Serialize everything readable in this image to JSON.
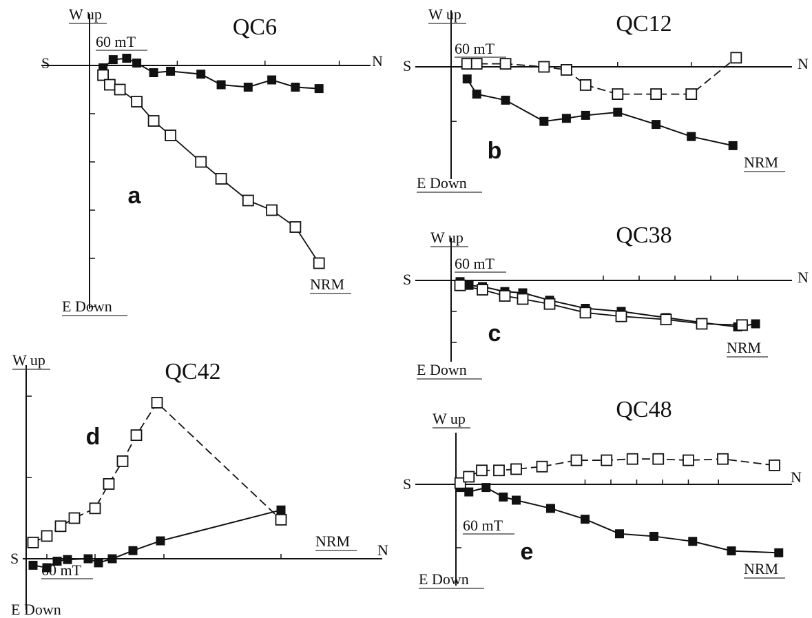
{
  "chart_data": [
    {
      "type": "scatter",
      "title": "QC6",
      "panel_label": "a",
      "axis_labels": {
        "west": "S",
        "east": "N",
        "north": "W up",
        "south": "E Down"
      },
      "field_label": "60 mT",
      "end_label": "NRM",
      "xlim": [
        -0.3,
        4.0
      ],
      "ylim": [
        -5.2,
        0.5
      ],
      "series": [
        {
          "style": "filled",
          "points": [
            [
              0.2,
              -0.05
            ],
            [
              0.35,
              0.12
            ],
            [
              0.55,
              0.15
            ],
            [
              0.7,
              0.05
            ],
            [
              0.95,
              -0.15
            ],
            [
              1.2,
              -0.12
            ],
            [
              1.65,
              -0.18
            ],
            [
              1.95,
              -0.4
            ],
            [
              2.35,
              -0.45
            ],
            [
              2.7,
              -0.3
            ],
            [
              3.05,
              -0.45
            ],
            [
              3.4,
              -0.48
            ]
          ]
        },
        {
          "style": "open",
          "points": [
            [
              0.2,
              -0.2
            ],
            [
              0.3,
              -0.4
            ],
            [
              0.45,
              -0.5
            ],
            [
              0.7,
              -0.75
            ],
            [
              0.95,
              -1.15
            ],
            [
              1.2,
              -1.45
            ],
            [
              1.65,
              -2.0
            ],
            [
              1.95,
              -2.35
            ],
            [
              2.35,
              -2.8
            ],
            [
              2.7,
              -3.0
            ],
            [
              3.05,
              -3.35
            ],
            [
              3.4,
              -4.1
            ]
          ]
        }
      ]
    },
    {
      "type": "scatter",
      "title": "QC12",
      "panel_label": "b",
      "axis_labels": {
        "west": "S",
        "east": "N",
        "north": "W up",
        "south": "E Down"
      },
      "field_label": "60 mT",
      "end_label": "NRM",
      "xlim": [
        -0.5,
        5.0
      ],
      "ylim": [
        -1.6,
        0.6
      ],
      "series": [
        {
          "style": "filled",
          "points": [
            [
              0.25,
              -0.2
            ],
            [
              0.4,
              -0.45
            ],
            [
              0.85,
              -0.55
            ],
            [
              1.45,
              -0.9
            ],
            [
              1.8,
              -0.85
            ],
            [
              2.1,
              -0.8
            ],
            [
              2.6,
              -0.75
            ],
            [
              3.2,
              -0.95
            ],
            [
              3.75,
              -1.15
            ],
            [
              4.4,
              -1.3
            ]
          ]
        },
        {
          "style": "open",
          "points": [
            [
              0.25,
              0.05
            ],
            [
              0.4,
              0.05
            ],
            [
              0.85,
              0.05
            ],
            [
              1.45,
              0.0
            ],
            [
              1.8,
              -0.05
            ],
            [
              2.1,
              -0.3
            ],
            [
              2.6,
              -0.45
            ],
            [
              3.2,
              -0.45
            ],
            [
              3.75,
              -0.45
            ],
            [
              4.45,
              0.15
            ]
          ]
        }
      ]
    },
    {
      "type": "scatter",
      "title": "QC38",
      "panel_label": "c",
      "axis_labels": {
        "west": "S",
        "east": "N",
        "north": "W up",
        "south": "E Down"
      },
      "field_label": "60 mT",
      "end_label": "NRM",
      "xlim": [
        -0.3,
        4.0
      ],
      "ylim": [
        -1.1,
        0.4
      ],
      "series": [
        {
          "style": "filled",
          "points": [
            [
              0.1,
              -0.02
            ],
            [
              0.2,
              -0.08
            ],
            [
              0.35,
              -0.1
            ],
            [
              0.6,
              -0.18
            ],
            [
              0.8,
              -0.2
            ],
            [
              1.1,
              -0.32
            ],
            [
              1.5,
              -0.45
            ],
            [
              1.9,
              -0.5
            ],
            [
              2.4,
              -0.6
            ],
            [
              2.8,
              -0.68
            ],
            [
              3.2,
              -0.75
            ],
            [
              3.4,
              -0.7
            ]
          ]
        },
        {
          "style": "open",
          "points": [
            [
              0.1,
              -0.08
            ],
            [
              0.35,
              -0.15
            ],
            [
              0.6,
              -0.25
            ],
            [
              0.8,
              -0.3
            ],
            [
              1.1,
              -0.38
            ],
            [
              1.5,
              -0.52
            ],
            [
              1.9,
              -0.58
            ],
            [
              2.4,
              -0.63
            ],
            [
              2.8,
              -0.7
            ],
            [
              3.25,
              -0.72
            ]
          ]
        }
      ]
    },
    {
      "type": "scatter",
      "title": "QC42",
      "panel_label": "d",
      "axis_labels": {
        "west": "S",
        "east": "N",
        "north": "W up",
        "south": "E Down"
      },
      "field_label": "60 mT",
      "end_label": "NRM",
      "xlim": [
        -0.3,
        5.6
      ],
      "ylim": [
        -0.3,
        2.2
      ],
      "series": [
        {
          "style": "filled",
          "points": [
            [
              0.1,
              -0.08
            ],
            [
              0.3,
              -0.11
            ],
            [
              0.45,
              -0.03
            ],
            [
              0.6,
              -0.01
            ],
            [
              0.9,
              0.0
            ],
            [
              1.05,
              -0.05
            ],
            [
              1.25,
              0.0
            ],
            [
              1.55,
              0.1
            ],
            [
              1.95,
              0.22
            ],
            [
              3.7,
              0.6
            ]
          ]
        },
        {
          "style": "open",
          "points": [
            [
              0.1,
              0.2
            ],
            [
              0.3,
              0.28
            ],
            [
              0.5,
              0.4
            ],
            [
              0.7,
              0.5
            ],
            [
              1.0,
              0.62
            ],
            [
              1.2,
              0.92
            ],
            [
              1.4,
              1.2
            ],
            [
              1.6,
              1.52
            ],
            [
              1.9,
              1.92
            ],
            [
              3.7,
              0.48
            ]
          ]
        }
      ]
    },
    {
      "type": "scatter",
      "title": "QC48",
      "panel_label": "e",
      "axis_labels": {
        "west": "S",
        "east": "N",
        "north": "W up",
        "south": "E Down"
      },
      "field_label": "60 mT",
      "end_label": "NRM",
      "xlim": [
        -0.3,
        4.0
      ],
      "ylim": [
        -1.6,
        0.6
      ],
      "series": [
        {
          "style": "filled",
          "points": [
            [
              0.05,
              -0.05
            ],
            [
              0.15,
              -0.12
            ],
            [
              0.35,
              -0.05
            ],
            [
              0.55,
              -0.2
            ],
            [
              0.7,
              -0.25
            ],
            [
              1.1,
              -0.38
            ],
            [
              1.5,
              -0.55
            ],
            [
              1.9,
              -0.78
            ],
            [
              2.3,
              -0.82
            ],
            [
              2.75,
              -0.9
            ],
            [
              3.2,
              -1.05
            ],
            [
              3.75,
              -1.08
            ]
          ]
        },
        {
          "style": "open",
          "points": [
            [
              0.05,
              0.02
            ],
            [
              0.15,
              0.12
            ],
            [
              0.3,
              0.22
            ],
            [
              0.5,
              0.22
            ],
            [
              0.7,
              0.24
            ],
            [
              1.0,
              0.28
            ],
            [
              1.4,
              0.38
            ],
            [
              1.75,
              0.38
            ],
            [
              2.05,
              0.4
            ],
            [
              2.35,
              0.4
            ],
            [
              2.7,
              0.38
            ],
            [
              3.1,
              0.4
            ],
            [
              3.7,
              0.3
            ]
          ]
        }
      ]
    }
  ]
}
